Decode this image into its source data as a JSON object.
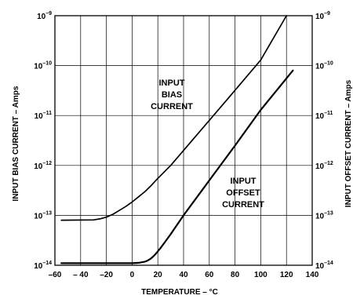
{
  "chart_data": {
    "type": "line",
    "xlabel": "TEMPERATURE – °C",
    "ylabel_left": "INPUT BIAS CURRENT – Amps",
    "ylabel_right": "INPUT OFFSET CURRENT – Amps",
    "xlim": [
      -60,
      140
    ],
    "ylim": [
      1e-14,
      1e-09
    ],
    "yscale": "log",
    "grid": true,
    "x_ticks": [
      "–60",
      "– 40",
      "–20",
      "0",
      "20",
      "40",
      "60",
      "80",
      "100",
      "120",
      "140"
    ],
    "y_ticks": [
      {
        "base": "10",
        "exp": "–9",
        "value": 1e-09
      },
      {
        "base": "10",
        "exp": "–10",
        "value": 1e-10
      },
      {
        "base": "10",
        "exp": "–11",
        "value": 1e-11
      },
      {
        "base": "10",
        "exp": "–12",
        "value": 1e-12
      },
      {
        "base": "10",
        "exp": "–13",
        "value": 1e-13
      },
      {
        "base": "10",
        "exp": "–14",
        "value": 1e-14
      }
    ],
    "annotations": {
      "bias": [
        "INPUT",
        "BIAS",
        "CURRENT"
      ],
      "offset": [
        "INPUT",
        "OFFSET",
        "CURRENT"
      ]
    },
    "series": [
      {
        "x": [
          -55,
          -30,
          -25,
          -20,
          -15,
          -10,
          -5,
          0,
          5,
          10,
          15,
          20,
          30,
          40,
          60,
          80,
          100,
          120
        ],
        "y": [
          8e-14,
          8.1e-14,
          8.5e-14,
          9.2e-14,
          1.05e-13,
          1.25e-13,
          1.5e-13,
          1.85e-13,
          2.35e-13,
          3e-13,
          4e-13,
          5.5e-13,
          1e-12,
          2e-12,
          8e-12,
          3.2e-11,
          1.3e-10,
          1e-09
        ]
      },
      {
        "x": [
          -55,
          0,
          5,
          10,
          12,
          14,
          16,
          18,
          20,
          22,
          25,
          30,
          40,
          60,
          80,
          100,
          125
        ],
        "y": [
          1.1e-14,
          1.1e-14,
          1.12e-14,
          1.18e-14,
          1.24e-14,
          1.33e-14,
          1.46e-14,
          1.65e-14,
          1.9e-14,
          2.2e-14,
          2.8e-14,
          4.2e-14,
          1e-13,
          5e-13,
          2.5e-12,
          1.3e-11,
          8e-11
        ]
      }
    ]
  }
}
